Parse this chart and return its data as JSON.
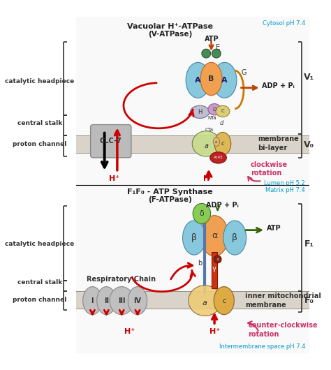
{
  "bg_color": "#ffffff",
  "membrane_color": "#c8bfb0",
  "red_arrow_color": "#cc0000",
  "pink_text_color": "#cc3366",
  "cyan_text_color": "#0099cc",
  "top_title": "Vacuolar H⁺-ATPase",
  "top_subtitle": "(V-ATPase)",
  "top_cytosol": "Cytosol pH 7.4",
  "top_lumen": "Lumen pH 5.2",
  "bottom_title": "F₁F₀ - ATP Synthase",
  "bottom_subtitle": "(F-ATPase)",
  "bottom_matrix": "Matrix pH 7.4",
  "bottom_intermembrane": "Intermembrane space pH 7.4",
  "left_labels_top": [
    "catalytic headpiece",
    "central stalk",
    "proton channel"
  ],
  "left_labels_bottom": [
    "catalytic headpiece",
    "central stalk",
    "proton channel"
  ],
  "right_labels_top": [
    "V₁",
    "V₀"
  ],
  "right_labels_bottom": [
    "F₁",
    "F₀"
  ],
  "membrane_bilayer_text": "membrane\nbi-layer",
  "inner_mito_text": "inner mitochondrial\nmembrane",
  "clc7_text": "CLC-7",
  "resp_chain_text": "Respiratory Chain",
  "clockwise_text": "clockwise\nrotation",
  "counter_clockwise_text": "counter-clockwise\nrotation",
  "atp_text_top": "ATP",
  "adp_pi_text_top": "ADP + Pᵢ",
  "atp_text_bottom": "ATP",
  "adp_pi_text_bottom": "ADP + Pᵢ",
  "hplus_text": "H⁺",
  "resp_chain_labels": [
    "I",
    "II",
    "III",
    "IV"
  ]
}
